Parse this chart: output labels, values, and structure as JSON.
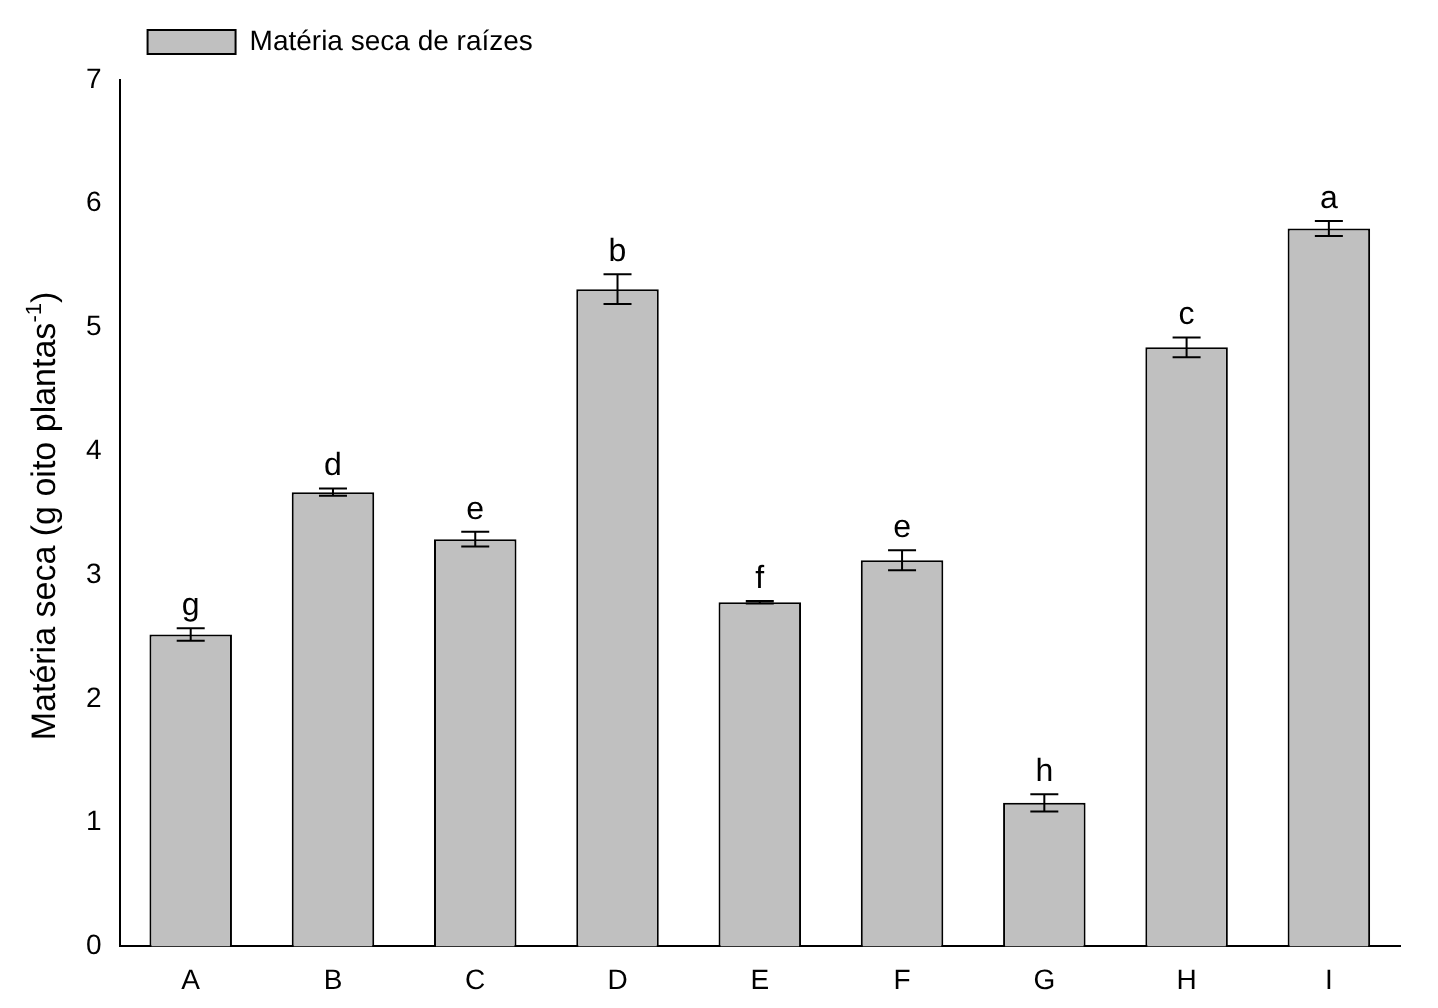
{
  "chart_data": {
    "type": "bar",
    "ylabel": "Matéria seca (g oito plantas$^{-1}$)",
    "categories": [
      "A",
      "B",
      "C",
      "D",
      "E",
      "F",
      "G",
      "H",
      "I"
    ],
    "series": [
      {
        "name": "Matéria seca de raízes",
        "color": "#c0c0c0",
        "values": [
          2.52,
          3.67,
          3.29,
          5.31,
          2.78,
          3.12,
          1.16,
          4.84,
          5.8
        ],
        "errors": [
          0.05,
          0.03,
          0.06,
          0.12,
          0.01,
          0.08,
          0.07,
          0.08,
          0.06
        ]
      }
    ],
    "ylim": [
      0,
      7
    ],
    "yticks": [
      0,
      1,
      2,
      3,
      4,
      5,
      6,
      7
    ],
    "grid": false,
    "legend": "top left",
    "annotations": [
      {
        "text": "g",
        "x": "A",
        "y": 2.57
      },
      {
        "text": "d",
        "x": "B",
        "y": 3.7
      },
      {
        "text": "e",
        "x": "C",
        "y": 3.35
      },
      {
        "text": "b",
        "x": "D",
        "y": 5.43
      },
      {
        "text": "f",
        "x": "E",
        "y": 2.79
      },
      {
        "text": "e",
        "x": "F",
        "y": 3.2
      },
      {
        "text": "h",
        "x": "G",
        "y": 1.23
      },
      {
        "text": "c",
        "x": "H",
        "y": 4.92
      },
      {
        "text": "a",
        "x": "I",
        "y": 5.86
      }
    ]
  }
}
